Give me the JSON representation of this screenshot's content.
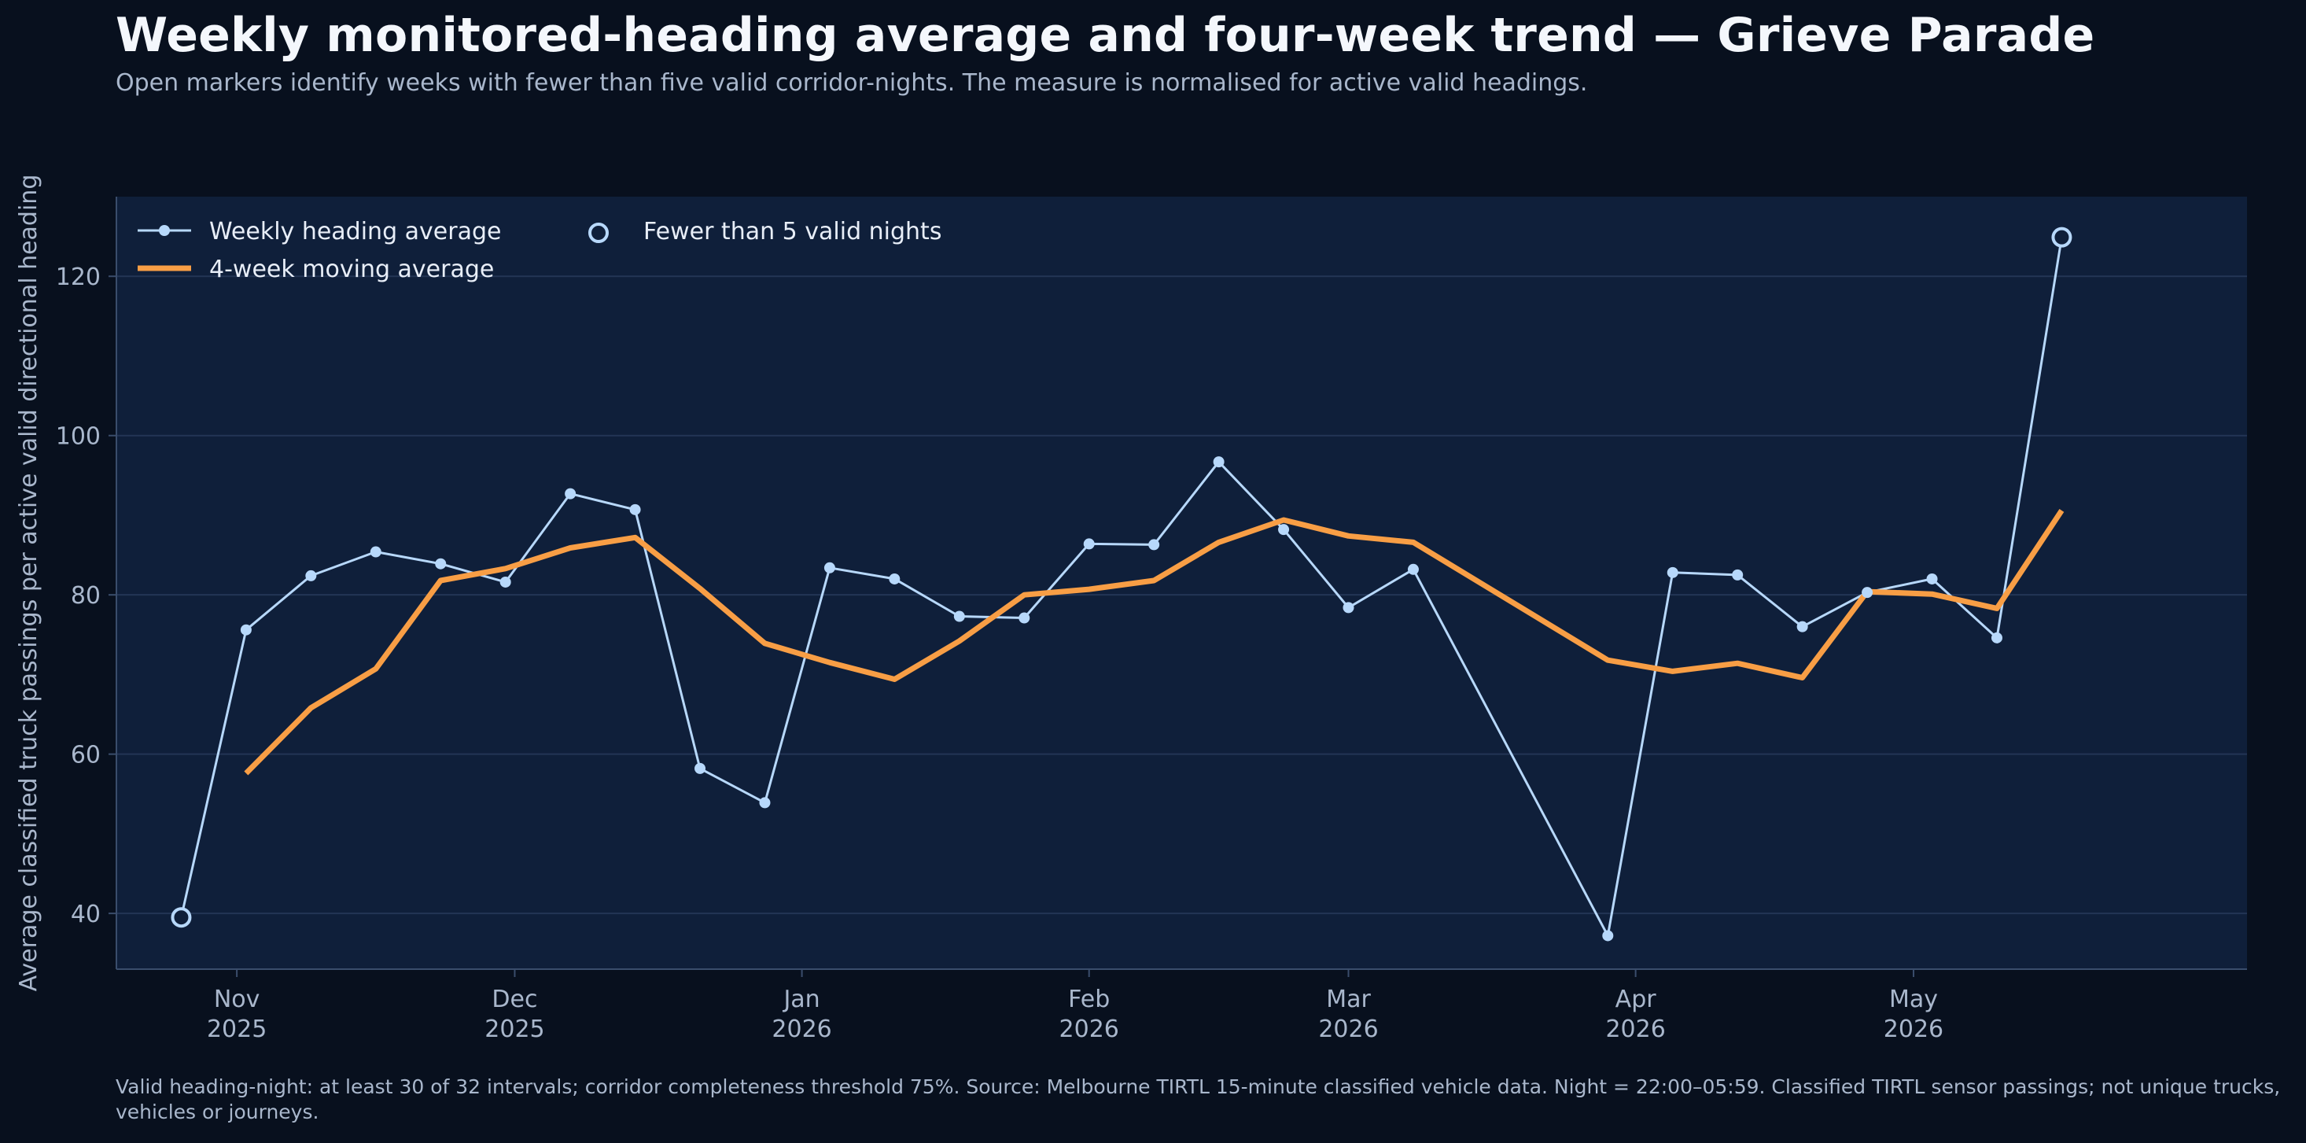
{
  "title": "Weekly monitored-heading average and four-week trend — Grieve Parade",
  "subtitle": "Open markers identify weeks with fewer than five valid corridor-nights. The measure is normalised for active valid headings.",
  "footnote": "Valid heading-night: at least 30 of 32 intervals; corridor completeness threshold 75%. Source: Melbourne TIRTL 15-minute classified vehicle data. Night = 22:00–05:59. Classified TIRTL sensor passings; not unique trucks, vehicles or journeys.",
  "colors": {
    "background": "#08101e",
    "plot_background": "#0f1f3a",
    "weekly_line": "#b7d8fb",
    "moving_average": "#f89e45",
    "grid": "#233555",
    "text": "#a9b7cc"
  },
  "chart_data": {
    "type": "line",
    "ylabel": "Average classified truck passings per active valid directional heading",
    "xlabel": "",
    "ylim": [
      33,
      130
    ],
    "yticks": [
      40,
      60,
      80,
      100,
      120
    ],
    "grid": "horizontal",
    "legend_position": "top-left",
    "x_axis": "date",
    "xlim": [
      "2025-10-19",
      "2026-06-06"
    ],
    "xticks": [
      {
        "date": "2025-11-01",
        "month": "Nov",
        "year": "2025"
      },
      {
        "date": "2025-12-01",
        "month": "Dec",
        "year": "2025"
      },
      {
        "date": "2026-01-01",
        "month": "Jan",
        "year": "2026"
      },
      {
        "date": "2026-02-01",
        "month": "Feb",
        "year": "2026"
      },
      {
        "date": "2026-03-01",
        "month": "Mar",
        "year": "2026"
      },
      {
        "date": "2026-04-01",
        "month": "Apr",
        "year": "2026"
      },
      {
        "date": "2026-05-01",
        "month": "May",
        "year": "2026"
      }
    ],
    "series": [
      {
        "name": "Weekly heading average",
        "style": "line-with-markers",
        "points": [
          {
            "x": "2025-10-26",
            "y": 39.5,
            "low_coverage": true
          },
          {
            "x": "2025-11-02",
            "y": 75.6
          },
          {
            "x": "2025-11-09",
            "y": 82.4
          },
          {
            "x": "2025-11-16",
            "y": 85.4
          },
          {
            "x": "2025-11-23",
            "y": 83.9
          },
          {
            "x": "2025-11-30",
            "y": 81.6
          },
          {
            "x": "2025-12-07",
            "y": 92.7
          },
          {
            "x": "2025-12-14",
            "y": 90.7
          },
          {
            "x": "2025-12-21",
            "y": 58.2
          },
          {
            "x": "2025-12-28",
            "y": 53.9
          },
          {
            "x": "2026-01-04",
            "y": 83.4
          },
          {
            "x": "2026-01-11",
            "y": 82.0
          },
          {
            "x": "2026-01-18",
            "y": 77.3
          },
          {
            "x": "2026-01-25",
            "y": 77.1
          },
          {
            "x": "2026-02-01",
            "y": 86.4
          },
          {
            "x": "2026-02-08",
            "y": 86.3
          },
          {
            "x": "2026-02-15",
            "y": 96.7
          },
          {
            "x": "2026-02-22",
            "y": 88.2
          },
          {
            "x": "2026-03-01",
            "y": 78.4
          },
          {
            "x": "2026-03-08",
            "y": 83.2
          },
          {
            "x": "2026-03-29",
            "y": 37.2
          },
          {
            "x": "2026-04-05",
            "y": 82.8
          },
          {
            "x": "2026-04-12",
            "y": 82.5
          },
          {
            "x": "2026-04-19",
            "y": 76.0
          },
          {
            "x": "2026-04-26",
            "y": 80.3
          },
          {
            "x": "2026-05-03",
            "y": 82.0
          },
          {
            "x": "2026-05-10",
            "y": 74.6
          },
          {
            "x": "2026-05-17",
            "y": 124.9,
            "low_coverage": true
          }
        ]
      },
      {
        "name": "4-week moving average",
        "style": "thick-line",
        "points": [
          {
            "x": "2025-11-02",
            "y": 57.6
          },
          {
            "x": "2025-11-09",
            "y": 65.8
          },
          {
            "x": "2025-11-16",
            "y": 70.7
          },
          {
            "x": "2025-11-23",
            "y": 81.8
          },
          {
            "x": "2025-11-30",
            "y": 83.3
          },
          {
            "x": "2025-12-07",
            "y": 85.9
          },
          {
            "x": "2025-12-14",
            "y": 87.2
          },
          {
            "x": "2025-12-21",
            "y": 80.8
          },
          {
            "x": "2025-12-28",
            "y": 73.9
          },
          {
            "x": "2026-01-04",
            "y": 71.5
          },
          {
            "x": "2026-01-11",
            "y": 69.4
          },
          {
            "x": "2026-01-18",
            "y": 74.2
          },
          {
            "x": "2026-01-25",
            "y": 80.0
          },
          {
            "x": "2026-02-01",
            "y": 80.7
          },
          {
            "x": "2026-02-08",
            "y": 81.8
          },
          {
            "x": "2026-02-15",
            "y": 86.6
          },
          {
            "x": "2026-02-22",
            "y": 89.4
          },
          {
            "x": "2026-03-01",
            "y": 87.4
          },
          {
            "x": "2026-03-08",
            "y": 86.6
          },
          {
            "x": "2026-03-29",
            "y": 71.8
          },
          {
            "x": "2026-04-05",
            "y": 70.4
          },
          {
            "x": "2026-04-12",
            "y": 71.4
          },
          {
            "x": "2026-04-19",
            "y": 69.6
          },
          {
            "x": "2026-04-26",
            "y": 80.4
          },
          {
            "x": "2026-05-03",
            "y": 80.1
          },
          {
            "x": "2026-05-10",
            "y": 78.3
          },
          {
            "x": "2026-05-17",
            "y": 90.6
          }
        ]
      }
    ],
    "legend": {
      "weekly": "Weekly heading average",
      "moving": "4-week moving average",
      "low_coverage": "Fewer than 5 valid nights"
    }
  }
}
